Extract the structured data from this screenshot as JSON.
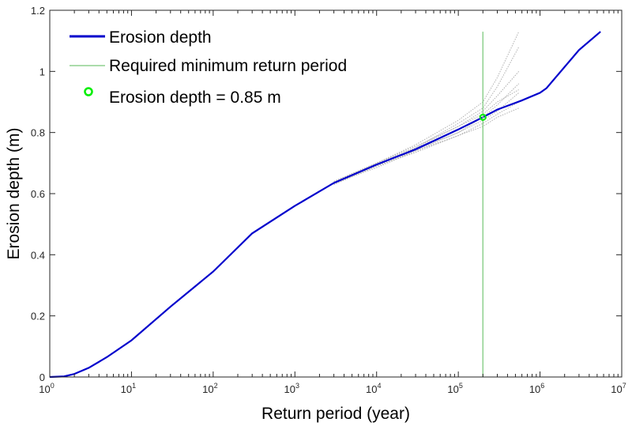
{
  "chart_data": {
    "type": "line",
    "xlabel": "Return period (year)",
    "ylabel": "Erosion depth (m)",
    "xscale": "log",
    "xlim": [
      1,
      10000000
    ],
    "ylim": [
      0,
      1.2
    ],
    "xticks": [
      1,
      10,
      100,
      1000,
      10000,
      100000,
      1000000,
      10000000
    ],
    "xtick_labels": [
      "0",
      "1",
      "2",
      "3",
      "4",
      "5",
      "6",
      "7"
    ],
    "yticks": [
      0,
      0.2,
      0.4,
      0.6,
      0.8,
      1,
      1.2
    ],
    "ytick_labels": [
      "0",
      "0.2",
      "0.4",
      "0.6",
      "0.8",
      "1",
      "1.2"
    ],
    "grid": false,
    "legend_placement": "top-left",
    "series": [
      {
        "name": "Erosion depth",
        "color": "#0000cc",
        "style": "solid",
        "x": [
          1,
          1.5,
          2,
          3,
          5,
          10,
          30,
          100,
          300,
          1000,
          3000,
          10000,
          30000,
          100000,
          200000,
          300000,
          600000,
          1000000,
          1200000,
          3000000,
          5500000
        ],
        "y": [
          0,
          0.002,
          0.01,
          0.03,
          0.065,
          0.12,
          0.23,
          0.345,
          0.47,
          0.56,
          0.635,
          0.695,
          0.745,
          0.81,
          0.85,
          0.875,
          0.905,
          0.93,
          0.945,
          1.07,
          1.13
        ]
      },
      {
        "name": "Required minimum return period",
        "color": "#8fd18f",
        "style": "vline",
        "x": [
          200000,
          200000
        ],
        "y": [
          0,
          1.13
        ]
      },
      {
        "name": "Erosion depth = 0.85 m",
        "color": "#00ee00",
        "style": "marker",
        "x": [
          200000
        ],
        "y": [
          0.85
        ]
      }
    ],
    "ensemble": {
      "color": "#b0b0b0",
      "style": "dotted",
      "x": [
        3000,
        10000,
        30000,
        100000,
        200000,
        300000,
        550000
      ],
      "members": [
        [
          0.64,
          0.7,
          0.76,
          0.84,
          0.9,
          0.98,
          1.13
        ],
        [
          0.63,
          0.69,
          0.75,
          0.83,
          0.88,
          0.95,
          1.08
        ],
        [
          0.635,
          0.7,
          0.75,
          0.82,
          0.87,
          0.92,
          1.0
        ],
        [
          0.64,
          0.695,
          0.745,
          0.8,
          0.85,
          0.89,
          0.96
        ],
        [
          0.63,
          0.69,
          0.74,
          0.8,
          0.84,
          0.87,
          0.93
        ],
        [
          0.635,
          0.685,
          0.74,
          0.79,
          0.83,
          0.86,
          0.9
        ],
        [
          0.63,
          0.69,
          0.735,
          0.79,
          0.82,
          0.85,
          0.88
        ],
        [
          0.64,
          0.7,
          0.755,
          0.82,
          0.86,
          0.9,
          0.94
        ]
      ]
    }
  }
}
